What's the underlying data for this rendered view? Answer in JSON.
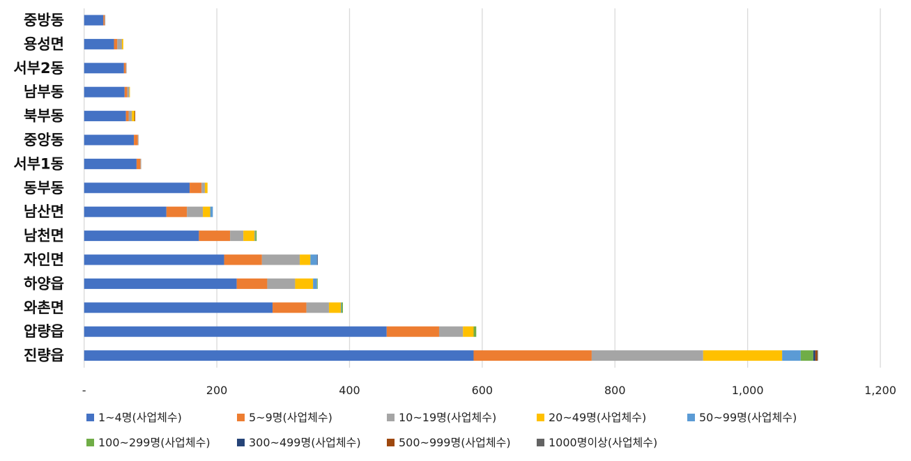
{
  "chart_data": {
    "type": "bar",
    "orientation": "horizontal",
    "stacked": true,
    "title": "",
    "xlabel": "",
    "ylabel": "",
    "xlim": [
      0,
      1200
    ],
    "grid": true,
    "legend_placement": "bottom",
    "x_ticks": [
      0,
      200,
      400,
      600,
      800,
      1000,
      1200
    ],
    "x_tick_labels": [
      "-",
      "200",
      "400",
      "600",
      "800",
      "1,000",
      "1,200"
    ],
    "categories": [
      "중방동",
      "용성면",
      "서부2동",
      "남부동",
      "북부동",
      "중앙동",
      "서부1동",
      "동부동",
      "남산면",
      "남천면",
      "자인면",
      "하양읍",
      "와촌면",
      "압량읍",
      "진량읍"
    ],
    "series": [
      {
        "name": "1~4명(사업체수)",
        "color": "#4472C4",
        "values": [
          29,
          45,
          60,
          61,
          63,
          75,
          79,
          159,
          124,
          173,
          211,
          230,
          284,
          456,
          587
        ]
      },
      {
        "name": "5~9명(사업체수)",
        "color": "#ED7D31",
        "values": [
          2,
          5,
          3,
          4,
          4,
          6,
          6,
          18,
          31,
          47,
          57,
          46,
          51,
          79,
          178
        ]
      },
      {
        "name": "10~19명(사업체수)",
        "color": "#A5A5A5",
        "values": [
          1,
          7,
          1,
          3,
          5,
          1,
          1,
          5,
          24,
          20,
          57,
          42,
          34,
          36,
          168
        ]
      },
      {
        "name": "20~49명(사업체수)",
        "color": "#FFC000",
        "values": [
          0,
          2,
          0,
          1,
          4,
          0,
          0,
          4,
          11,
          17,
          16,
          27,
          18,
          16,
          119
        ]
      },
      {
        "name": "50~99명(사업체수)",
        "color": "#5B9BD5",
        "values": [
          0,
          0,
          0,
          0,
          0,
          0,
          0,
          0,
          4,
          1,
          10,
          6,
          1,
          0,
          28
        ]
      },
      {
        "name": "100~299명(사업체수)",
        "color": "#70AD47",
        "values": [
          0,
          0,
          0,
          0,
          0,
          0,
          0,
          0,
          0,
          2,
          0,
          1,
          2,
          4,
          19
        ]
      },
      {
        "name": "300~499명(사업체수)",
        "color": "#264478",
        "values": [
          0,
          0,
          0,
          0,
          0,
          0,
          0,
          0,
          0,
          0,
          1,
          0,
          0,
          0,
          3
        ]
      },
      {
        "name": "500~999명(사업체수)",
        "color": "#9E480E",
        "values": [
          0,
          0,
          0,
          0,
          1,
          0,
          0,
          0,
          0,
          0,
          0,
          0,
          0,
          0,
          3
        ]
      },
      {
        "name": "1000명이상(사업체수)",
        "color": "#636363",
        "values": [
          0,
          0,
          0,
          0,
          0,
          0,
          0,
          0,
          0,
          0,
          0,
          0,
          0,
          0,
          1
        ]
      }
    ]
  }
}
